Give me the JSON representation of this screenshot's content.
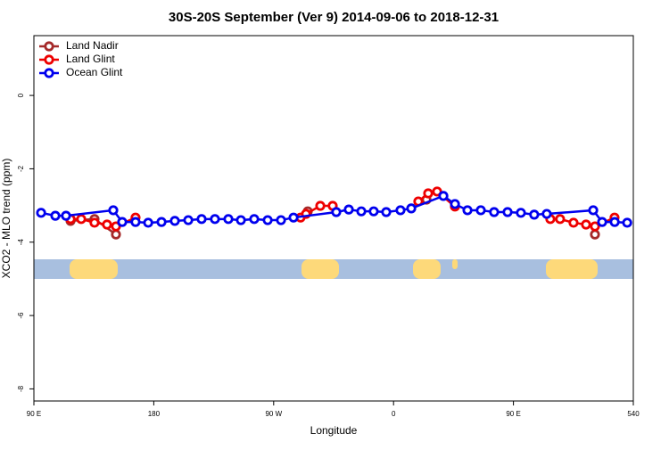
{
  "chart_data": {
    "type": "line",
    "title": "30S-20S September (Ver 9)   2014-09-06 to 2018-12-31",
    "x_label": "Longitude",
    "y_label": "XCO2 - MLO trend (ppm)",
    "xlim": [
      90,
      540
    ],
    "xticks": [
      {
        "value": 90,
        "label": "90 E"
      },
      180,
      {
        "value": 270,
        "label": "90 W"
      },
      {
        "value": 360,
        "label": "0"
      },
      {
        "value": 450,
        "label": "90 E"
      },
      540
    ],
    "ylim": [
      -8.33,
      1.63
    ],
    "yticks": [
      0,
      -2,
      -4,
      -6,
      -8
    ],
    "legend_position": "top-left",
    "series": [
      {
        "name": "Land Nadir",
        "color": "#a52a2a",
        "x": [
          117.5,
          135.5,
          151.6,
          null,
          295.6,
          null,
          384.7,
          null,
          511.2
        ],
        "values": [
          -3.42,
          -3.37,
          -3.79,
          null,
          -3.16,
          null,
          -2.84,
          null,
          -3.79
        ]
      },
      {
        "name": "Land Glint",
        "color": "#ee0000",
        "x": [
          117.5,
          125.5,
          135.5,
          144.9,
          151.6,
          166.3,
          null,
          290.2,
          294.3,
          305,
          314.3,
          null,
          378.6,
          386,
          392.7,
          406.1,
          null,
          477.7,
          485,
          495.1,
          504.5,
          511.2,
          525.9
        ],
        "values": [
          -3.37,
          -3.37,
          -3.47,
          -3.52,
          -3.57,
          -3.33,
          null,
          -3.33,
          -3.23,
          -3.01,
          -3.01,
          null,
          -2.89,
          -2.67,
          -2.62,
          -3.03,
          null,
          -3.37,
          -3.37,
          -3.47,
          -3.52,
          -3.57,
          -3.33
        ]
      },
      {
        "name": "Ocean Glint",
        "color": "#0000ee",
        "x": [
          95.4,
          106.1,
          114.1,
          149.6,
          156.3,
          166.3,
          175.8,
          185.8,
          195.8,
          205.9,
          215.9,
          225.9,
          236,
          245.4,
          255.4,
          265.5,
          275.5,
          284.9,
          317,
          326.4,
          335.8,
          345.1,
          354.5,
          365.2,
          373.3,
          397.4,
          406.1,
          415.5,
          425.5,
          435.5,
          445.6,
          455.6,
          465.6,
          475,
          509.9,
          516.6,
          526,
          535.4
        ],
        "values": [
          -3.2,
          -3.28,
          -3.28,
          -3.13,
          -3.45,
          -3.45,
          -3.47,
          -3.45,
          -3.42,
          -3.4,
          -3.37,
          -3.37,
          -3.37,
          -3.4,
          -3.37,
          -3.4,
          -3.4,
          -3.33,
          -3.18,
          -3.11,
          -3.16,
          -3.16,
          -3.18,
          -3.13,
          -3.08,
          -2.74,
          -2.96,
          -3.13,
          -3.13,
          -3.18,
          -3.18,
          -3.2,
          -3.25,
          -3.23,
          -3.13,
          -3.45,
          -3.45,
          -3.47
        ]
      }
    ]
  }
}
